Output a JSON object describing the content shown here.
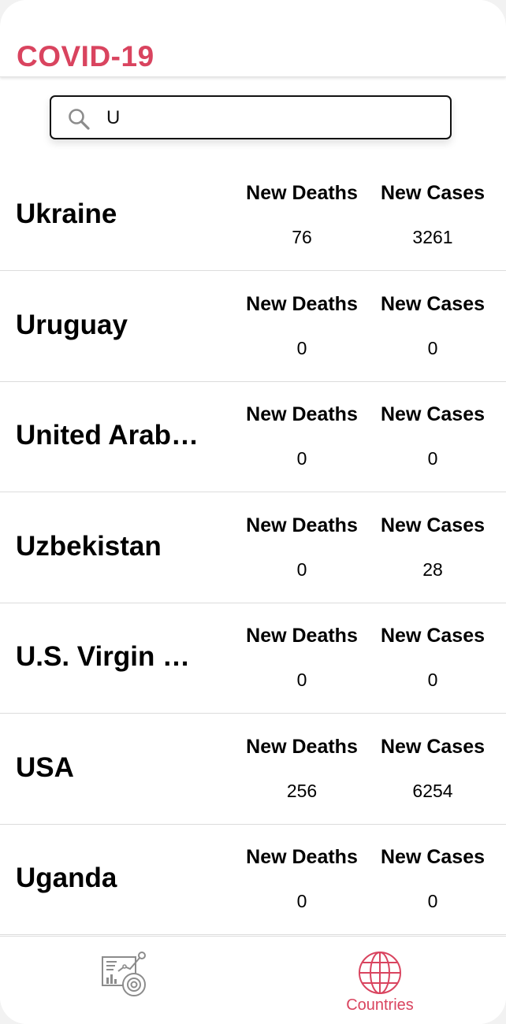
{
  "header": {
    "title": "COVID-19"
  },
  "search": {
    "value": "U",
    "icon": "search-icon"
  },
  "labels": {
    "new_deaths": "New Deaths",
    "new_cases": "New Cases"
  },
  "countries": [
    {
      "name": "Ukraine",
      "new_deaths": "76",
      "new_cases": "3261"
    },
    {
      "name": "Uruguay",
      "new_deaths": "0",
      "new_cases": "0"
    },
    {
      "name": "United Arab…",
      "new_deaths": "0",
      "new_cases": "0"
    },
    {
      "name": "Uzbekistan",
      "new_deaths": "0",
      "new_cases": "28"
    },
    {
      "name": "U.S. Virgin …",
      "new_deaths": "0",
      "new_cases": "0"
    },
    {
      "name": "USA",
      "new_deaths": "256",
      "new_cases": "6254"
    },
    {
      "name": "Uganda",
      "new_deaths": "0",
      "new_cases": "0"
    }
  ],
  "tabs": {
    "stats": {
      "icon": "statistics-icon"
    },
    "countries": {
      "label": "Countries",
      "icon": "globe-icon",
      "active": true
    }
  },
  "colors": {
    "accent": "#d9445f",
    "inactive_icon": "#8c8c8c",
    "divider": "#dcdcdc"
  }
}
